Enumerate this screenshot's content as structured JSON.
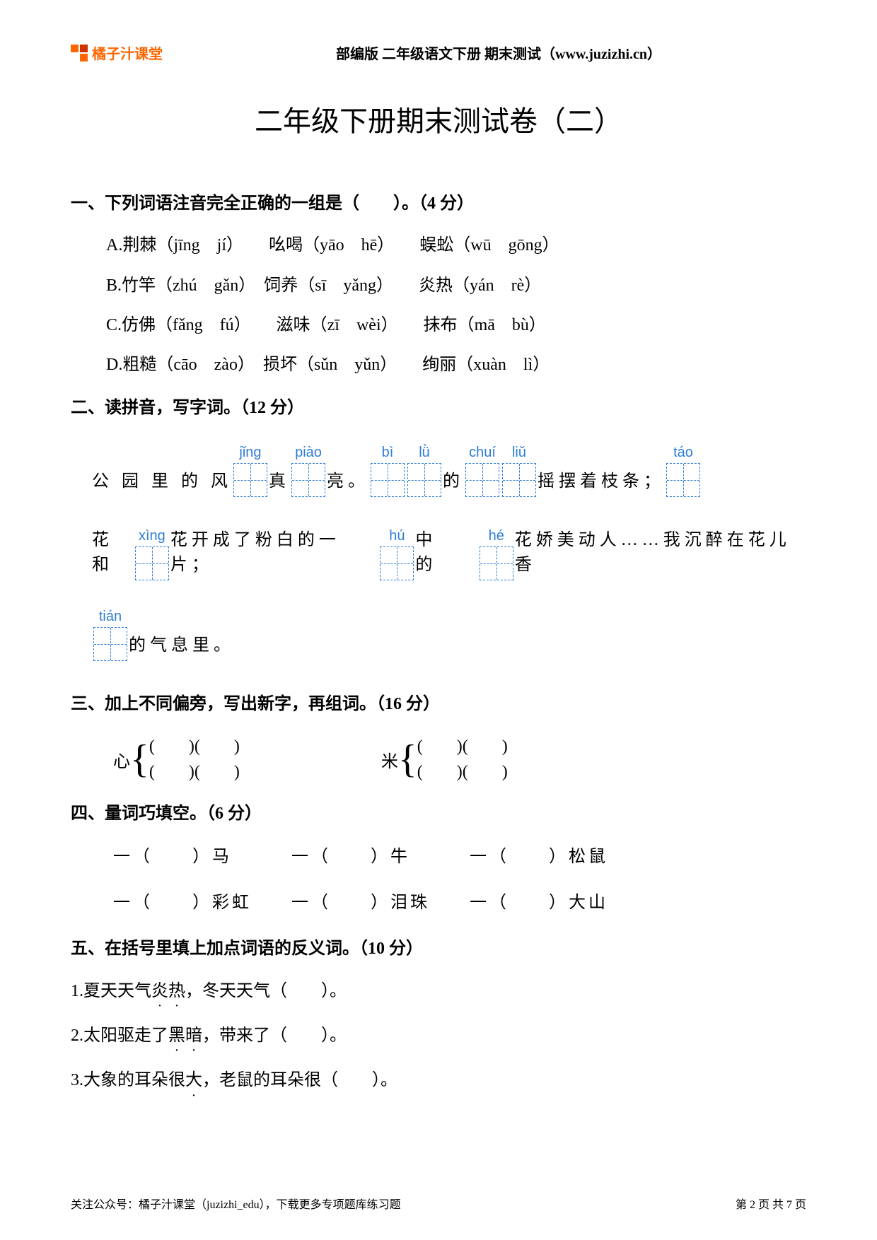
{
  "header": {
    "logo_text": "橘子汁课堂",
    "header_text": "部编版 二年级语文下册 期末测试（www.juzizhi.cn）"
  },
  "title": "二年级下册期末测试卷（二）",
  "section1": {
    "title": "一、下列词语注音完全正确的一组是（　　）。（4 分）",
    "options": {
      "a": "A.荆棘（jīng　jí）　　吆喝（yāo　hē）　　蜈蚣（wū　gōng）",
      "b": "B.竹竿（zhú　gǎn）　饲养（sī　yǎng）　　炎热（yán　rè）",
      "c": "C.仿佛（fǎng　fú）　　滋味（zī　wèi）　　抹布（mā　bù）",
      "d": "D.粗糙（cāo　zào）　损坏（sǔn　yǔn）　　绚丽（xuàn　lì）"
    }
  },
  "section2": {
    "title": "二、读拼音，写字词。（12 分）",
    "line1": {
      "t1": "公 园 里 的 风",
      "p1": "jǐng",
      "t2": "真",
      "p2": "piào",
      "t3": "亮。",
      "p3": "bì",
      "p4": "lǜ",
      "t4": "的",
      "p5": "chuí",
      "p6": "liǔ",
      "t5": "摇摆着枝条；",
      "p7": "táo"
    },
    "line2": {
      "t1": "花和",
      "p1": "xìng",
      "t2": "花开成了粉白的一片；",
      "p2": "hú",
      "t3": "中　的",
      "p3": "hé",
      "t4": "花娇美动人……我沉醉在花儿香"
    },
    "line3": {
      "p1": "tián",
      "t1": "的气息里。"
    }
  },
  "section3": {
    "title": "三、加上不同偏旁，写出新字，再组词。（16 分）",
    "radical1": "心",
    "radical2": "米",
    "brace_line": "(　　)(　　)"
  },
  "section4": {
    "title": "四、量词巧填空。（6 分）",
    "line1": "一（　　）马　　　一（　　）牛　　　一（　　）松鼠",
    "line2": "一（　　）彩虹　　一（　　）泪珠　　一（　　）大山"
  },
  "section5": {
    "title": "五、在括号里填上加点词语的反义词。（10 分）",
    "item1_pre": "1.夏天天气",
    "item1_dot1": "炎",
    "item1_dot2": "热",
    "item1_post": "，冬天天气（　　）。",
    "item2_pre": "2.太阳驱走了",
    "item2_dot1": "黑",
    "item2_dot2": "暗",
    "item2_post": "，带来了（　　）。",
    "item3_pre": "3.大象的耳朵很",
    "item3_dot1": "大",
    "item3_post": "，老鼠的耳朵很（　　）。"
  },
  "footer": {
    "left": "关注公众号：橘子汁课堂（juzizhi_edu），下载更多专项题库练习题",
    "right": "第 2 页 共 7 页"
  }
}
